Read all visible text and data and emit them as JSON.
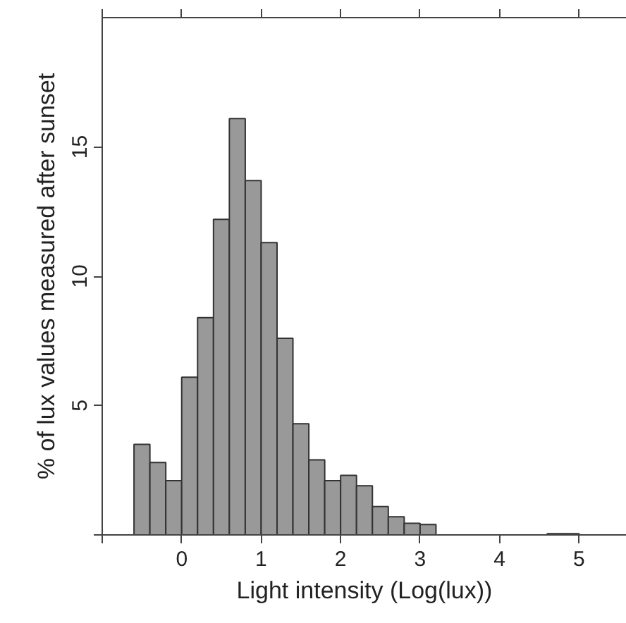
{
  "chart_data": {
    "type": "histogram",
    "xlabel": "Light intensity (Log(lux))",
    "ylabel": "% of lux values measured after sunset",
    "bins": [
      -0.6,
      -0.4,
      -0.2,
      0,
      0.2,
      0.4,
      0.6,
      0.8,
      1.0,
      1.2,
      1.4,
      1.6,
      1.8,
      2.0,
      2.2,
      2.4,
      2.6,
      2.8,
      3.0,
      3.2,
      3.4,
      3.6,
      3.8,
      4.0,
      4.2,
      4.4,
      4.6,
      4.8,
      5.0
    ],
    "values": [
      3.5,
      2.8,
      2.1,
      6.1,
      8.4,
      12.2,
      16.1,
      13.7,
      11.3,
      7.6,
      4.3,
      2.9,
      2.1,
      2.3,
      1.9,
      1.1,
      0.7,
      0.45,
      0.4,
      0,
      0,
      0,
      0,
      0,
      0,
      0,
      0.05,
      0.05
    ],
    "color": "#999999",
    "xlim": [
      -1,
      5.6
    ],
    "ylim": [
      0,
      20
    ],
    "xticks": [
      {
        "value": -1,
        "label": null
      },
      0,
      1,
      2,
      3,
      4,
      5
    ],
    "yticks": [
      {
        "value": 0,
        "label": null
      },
      5,
      10,
      15
    ],
    "grid": false
  }
}
